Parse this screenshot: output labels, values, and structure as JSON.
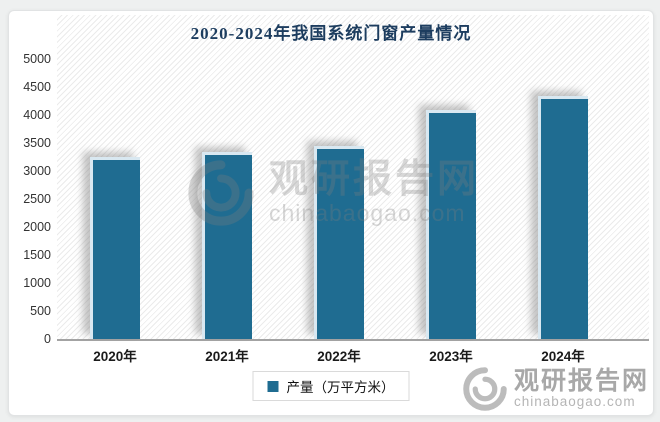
{
  "chart_data": {
    "type": "bar",
    "title": "2020-2024年我国系统门窗产量情况",
    "categories": [
      "2020年",
      "2021年",
      "2022年",
      "2023年",
      "2024年"
    ],
    "values": [
      3250,
      3340,
      3450,
      4090,
      4340
    ],
    "series_name": "产量（万平方米）",
    "xlabel": "",
    "ylabel": "",
    "ylim": [
      0,
      5000
    ],
    "ytick_step": 500,
    "yticks": [
      0,
      500,
      1000,
      1500,
      2000,
      2500,
      3000,
      3500,
      4000,
      4500,
      5000
    ],
    "grid": false,
    "legend_position": "bottom",
    "bar_color": "#1f6c91",
    "bar_border_color": "#d9e8f1",
    "background_style": "diagonal-hatch"
  },
  "colors": {
    "title": "#1d3d5f",
    "axis_line": "#a3a3a3",
    "watermark_gray": "#a8a8a8",
    "card_background": "#ffffff"
  },
  "watermark": {
    "name": "观研报告网",
    "domain": "chinabaogao.com"
  }
}
